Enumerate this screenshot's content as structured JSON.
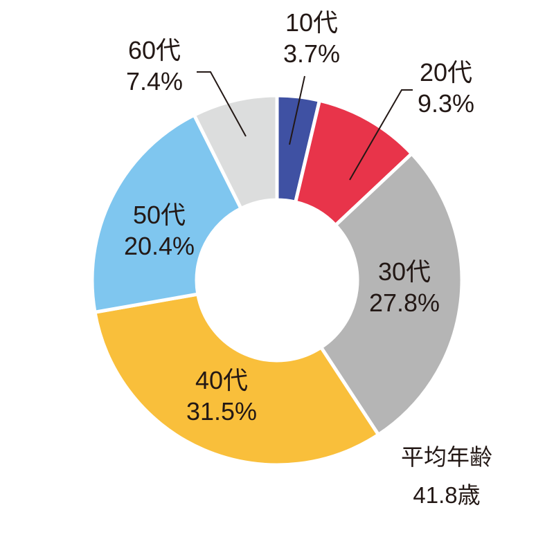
{
  "chart_data": {
    "type": "pie",
    "variant": "donut",
    "categories": [
      "10代",
      "20代",
      "30代",
      "40代",
      "50代",
      "60代"
    ],
    "values": [
      3.7,
      9.3,
      27.8,
      31.5,
      20.4,
      7.4
    ],
    "value_labels": [
      "3.7%",
      "9.3%",
      "27.8%",
      "31.5%",
      "20.4%",
      "7.4%"
    ],
    "colors": [
      "#3f51a3",
      "#e8344a",
      "#b5b5b5",
      "#f9bf3b",
      "#7fc6ef",
      "#dcdddd"
    ],
    "start": "top",
    "direction": "clockwise",
    "annotation": {
      "label": "平均年齢",
      "value": "41.8歳"
    }
  }
}
